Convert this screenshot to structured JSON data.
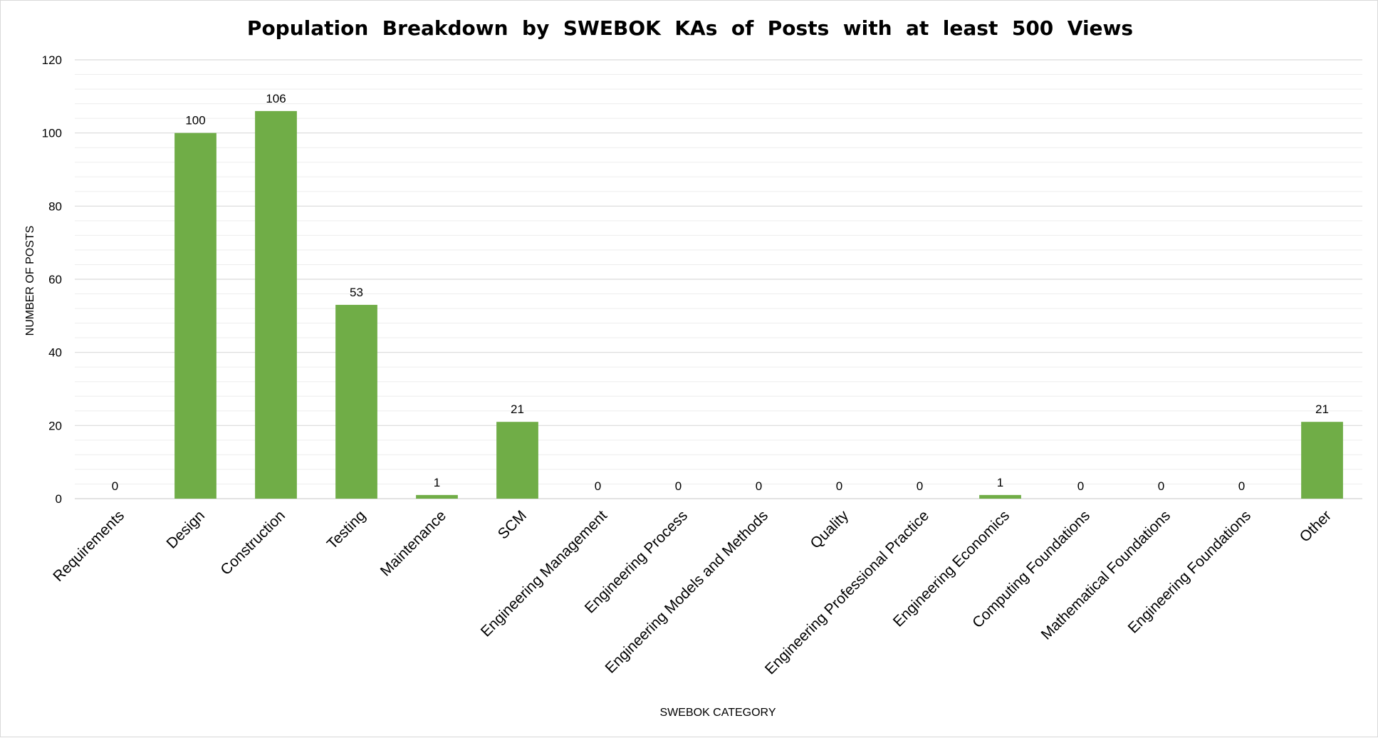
{
  "chart_data": {
    "type": "bar",
    "title": "Population  Breakdown  by  SWEBOK  KAs  of  Posts  with  at  least  500  Views",
    "xlabel": "SWEBOK CATEGORY",
    "ylabel": "NUMBER OF POSTS",
    "categories": [
      "Requirements",
      "Design",
      "Construction",
      "Testing",
      "Maintenance",
      "SCM",
      "Engineering Management",
      "Engineering Process",
      "Engineering Models and Methods",
      "Quality",
      "Engineering Professional Practice",
      "Engineering Economics",
      "Computing Foundations",
      "Mathematical Foundations",
      "Engineering Foundations",
      "Other"
    ],
    "values": [
      0,
      100,
      106,
      53,
      1,
      21,
      0,
      0,
      0,
      0,
      0,
      1,
      0,
      0,
      0,
      21
    ],
    "ylim": [
      0,
      120
    ],
    "yticks": [
      0,
      20,
      40,
      60,
      80,
      100,
      120
    ],
    "minor_gridlines": true,
    "data_labels": true,
    "legend": "none",
    "colors": {
      "bar": "#70AD47",
      "major_grid": "#D9D9D9",
      "minor_grid": "#EDEDED",
      "baseline": "#D9D9D9"
    }
  }
}
